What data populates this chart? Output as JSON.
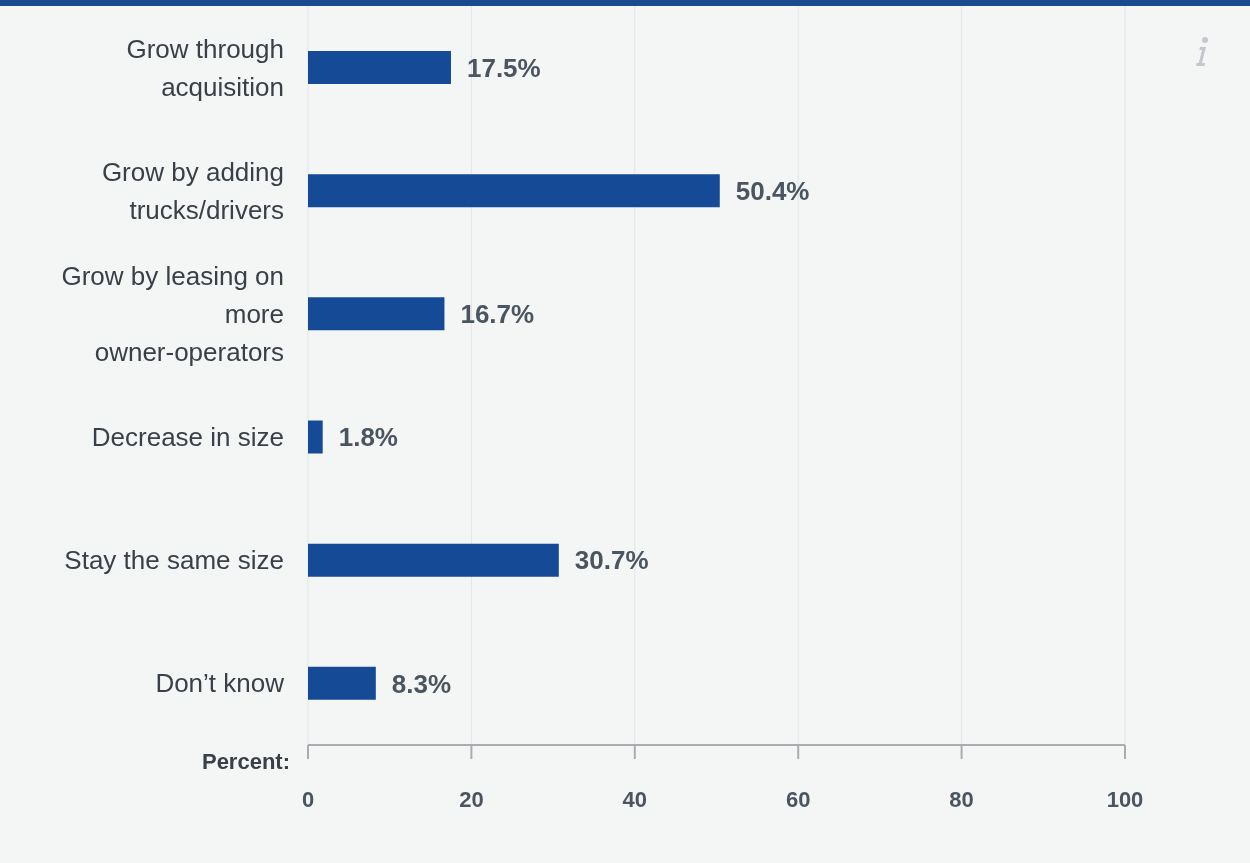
{
  "chart_data": {
    "type": "bar",
    "orientation": "horizontal",
    "categories": [
      "Grow through acquisition",
      "Grow by adding trucks/drivers",
      "Grow by leasing on more owner-operators",
      "Decrease in size",
      "Stay the same size",
      "Don’t know"
    ],
    "values": [
      17.5,
      50.4,
      16.7,
      1.8,
      30.7,
      8.3
    ],
    "value_labels": [
      "17.5%",
      "50.4%",
      "16.7%",
      "1.8%",
      "30.7%",
      "8.3%"
    ],
    "color": "#144a96",
    "xlabel": "Percent:",
    "xlim": [
      0,
      100
    ],
    "xticks": [
      0,
      20,
      40,
      60,
      80,
      100
    ],
    "grid": "x"
  }
}
